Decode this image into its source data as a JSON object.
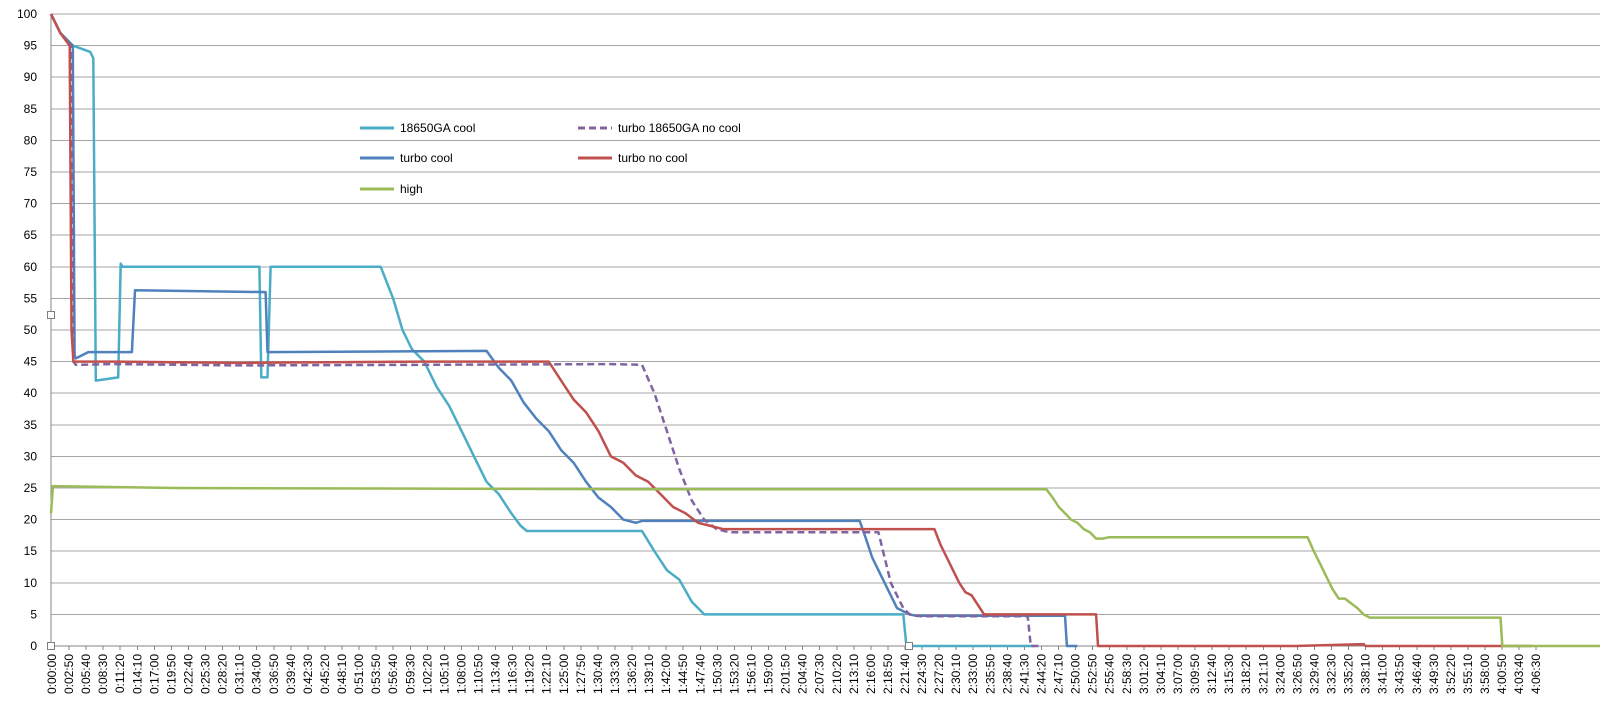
{
  "chart_data": {
    "type": "line",
    "title": "",
    "xlabel": "",
    "ylabel": "",
    "ylim": [
      0,
      100
    ],
    "yticks": [
      0,
      5,
      10,
      15,
      20,
      25,
      30,
      35,
      40,
      45,
      50,
      55,
      60,
      65,
      70,
      75,
      80,
      85,
      90,
      95,
      100
    ],
    "xlim": [
      0,
      249
    ],
    "xtick_labels": [
      "0:00:00",
      "0:02:50",
      "0:05:40",
      "0:08:30",
      "0:11:20",
      "0:14:10",
      "0:17:00",
      "0:19:50",
      "0:22:40",
      "0:25:30",
      "0:28:20",
      "0:31:10",
      "0:34:00",
      "0:36:50",
      "0:39:40",
      "0:42:30",
      "0:45:20",
      "0:48:10",
      "0:51:00",
      "0:53:50",
      "0:56:40",
      "0:59:30",
      "1:02:20",
      "1:05:10",
      "1:08:00",
      "1:10:50",
      "1:13:40",
      "1:16:30",
      "1:19:20",
      "1:22:10",
      "1:25:00",
      "1:27:50",
      "1:30:40",
      "1:33:30",
      "1:36:20",
      "1:39:10",
      "1:42:00",
      "1:44:50",
      "1:47:40",
      "1:50:30",
      "1:53:20",
      "1:56:10",
      "1:59:00",
      "2:01:50",
      "2:04:40",
      "2:07:30",
      "2:10:20",
      "2:13:10",
      "2:16:00",
      "2:18:50",
      "2:21:40",
      "2:24:30",
      "2:27:20",
      "2:30:10",
      "2:33:00",
      "2:35:50",
      "2:38:40",
      "2:41:30",
      "2:44:20",
      "2:47:10",
      "2:50:00",
      "2:52:50",
      "2:55:40",
      "2:58:30",
      "3:01:20",
      "3:04:10",
      "3:07:00",
      "3:09:50",
      "3:12:40",
      "3:15:30",
      "3:18:20",
      "3:21:10",
      "3:24:00",
      "3:26:50",
      "3:29:40",
      "3:32:30",
      "3:35:20",
      "3:38:10",
      "3:41:00",
      "3:43:50",
      "3:46:40",
      "3:49:30",
      "3:52:20",
      "3:55:10",
      "3:58:00",
      "4:00:50",
      "4:03:40",
      "4:06:30"
    ],
    "grid": true,
    "legend_position": "top-left inside plot",
    "series": [
      {
        "name": "18650GA cool",
        "color": "#4bacc6",
        "dash": "solid",
        "x": [
          0,
          1.5,
          3.5,
          6.3,
          6.8,
          7.2,
          10.8,
          11.2,
          11.5,
          33.5,
          33.8,
          34.8,
          35.3,
          53,
          55,
          56.5,
          58,
          60,
          62,
          64,
          66,
          68,
          70,
          72,
          74,
          75.5,
          76.5,
          95,
          97,
          99,
          101,
          103,
          105,
          137,
          137.5,
          158
        ],
        "y": [
          100,
          97,
          95,
          94,
          93,
          42,
          42.5,
          60.5,
          60,
          60,
          42.5,
          42.5,
          60,
          60,
          55,
          50,
          47,
          45,
          41,
          38,
          34,
          30,
          26,
          24,
          21,
          19,
          18.2,
          18.2,
          15,
          12,
          10.5,
          7,
          5,
          5,
          0,
          0
        ]
      },
      {
        "name": "turbo cool",
        "color": "#4f81bd",
        "dash": "solid",
        "x": [
          0,
          1.5,
          3.5,
          3.8,
          4,
          6,
          13,
          13.5,
          34.5,
          34.8,
          70,
          72,
          74,
          76,
          78,
          80,
          82,
          84,
          86,
          88,
          90,
          92,
          94,
          95,
          130,
          131,
          132,
          133,
          134,
          135,
          136,
          138,
          139,
          148,
          163,
          163.3,
          165
        ],
        "y": [
          100,
          97,
          95,
          46,
          45.5,
          46.5,
          46.5,
          56.3,
          56,
          46.5,
          46.7,
          44,
          42,
          38.5,
          36,
          34,
          31,
          29,
          26,
          23.5,
          22,
          20,
          19.5,
          19.8,
          19.8,
          17,
          14,
          12,
          10,
          8,
          6,
          5,
          4.8,
          4.8,
          4.8,
          0,
          0
        ]
      },
      {
        "name": "turbo 18650GA no cool",
        "color": "#8064a2",
        "dash": "dashed",
        "x": [
          0,
          1.5,
          3.2,
          3.6,
          4,
          10,
          30,
          60,
          90,
          95,
          97,
          99,
          101,
          103,
          105,
          107,
          109,
          110,
          133,
          134,
          135,
          136,
          137,
          138,
          139,
          140,
          157,
          157.5,
          159
        ],
        "y": [
          100,
          97,
          95,
          45,
          44.5,
          44.6,
          44.4,
          44.5,
          44.6,
          44.5,
          40,
          34,
          28,
          23,
          20,
          18.5,
          18,
          18,
          18,
          14,
          10,
          8,
          6,
          5,
          4.8,
          4.7,
          4.7,
          0,
          0
        ]
      },
      {
        "name": "turbo no cool",
        "color": "#c0504d",
        "dash": "solid",
        "x": [
          0,
          1.5,
          3,
          3.3,
          3.6,
          10,
          30,
          60,
          80,
          82,
          84,
          86,
          88,
          90,
          92,
          94,
          96,
          98,
          100,
          102,
          104,
          106,
          108,
          110,
          142,
          143,
          144,
          145,
          146,
          147,
          148,
          149,
          150,
          168,
          168.3,
          200,
          211,
          211.3,
          238
        ],
        "y": [
          100,
          97,
          95,
          50,
          45,
          45,
          44.8,
          45,
          45,
          42,
          39,
          37,
          34,
          30,
          29,
          27,
          26,
          24,
          22,
          21,
          19.5,
          19,
          18.5,
          18.5,
          18.5,
          16,
          14,
          12,
          10,
          8.5,
          8,
          6.5,
          5,
          5,
          0,
          0,
          0.3,
          0,
          0
        ]
      },
      {
        "name": "high",
        "color": "#9bbb59",
        "dash": "solid",
        "x": [
          0,
          0.3,
          20,
          60,
          100,
          140,
          160,
          161,
          162,
          163,
          164,
          165,
          166,
          167,
          168,
          169,
          170,
          180,
          200,
          202,
          203,
          204,
          205,
          206,
          207,
          208,
          210,
          211,
          212,
          215,
          230,
          233,
          233.3,
          249
        ],
        "y": [
          21,
          25.3,
          25,
          24.9,
          24.8,
          24.8,
          24.8,
          23.5,
          22,
          21,
          20,
          19.5,
          18.5,
          18,
          17,
          17,
          17.2,
          17.2,
          17.2,
          17.2,
          15,
          13,
          11,
          9,
          7.5,
          7.5,
          6,
          5,
          4.5,
          4.5,
          4.5,
          4.5,
          0,
          0
        ]
      }
    ]
  }
}
